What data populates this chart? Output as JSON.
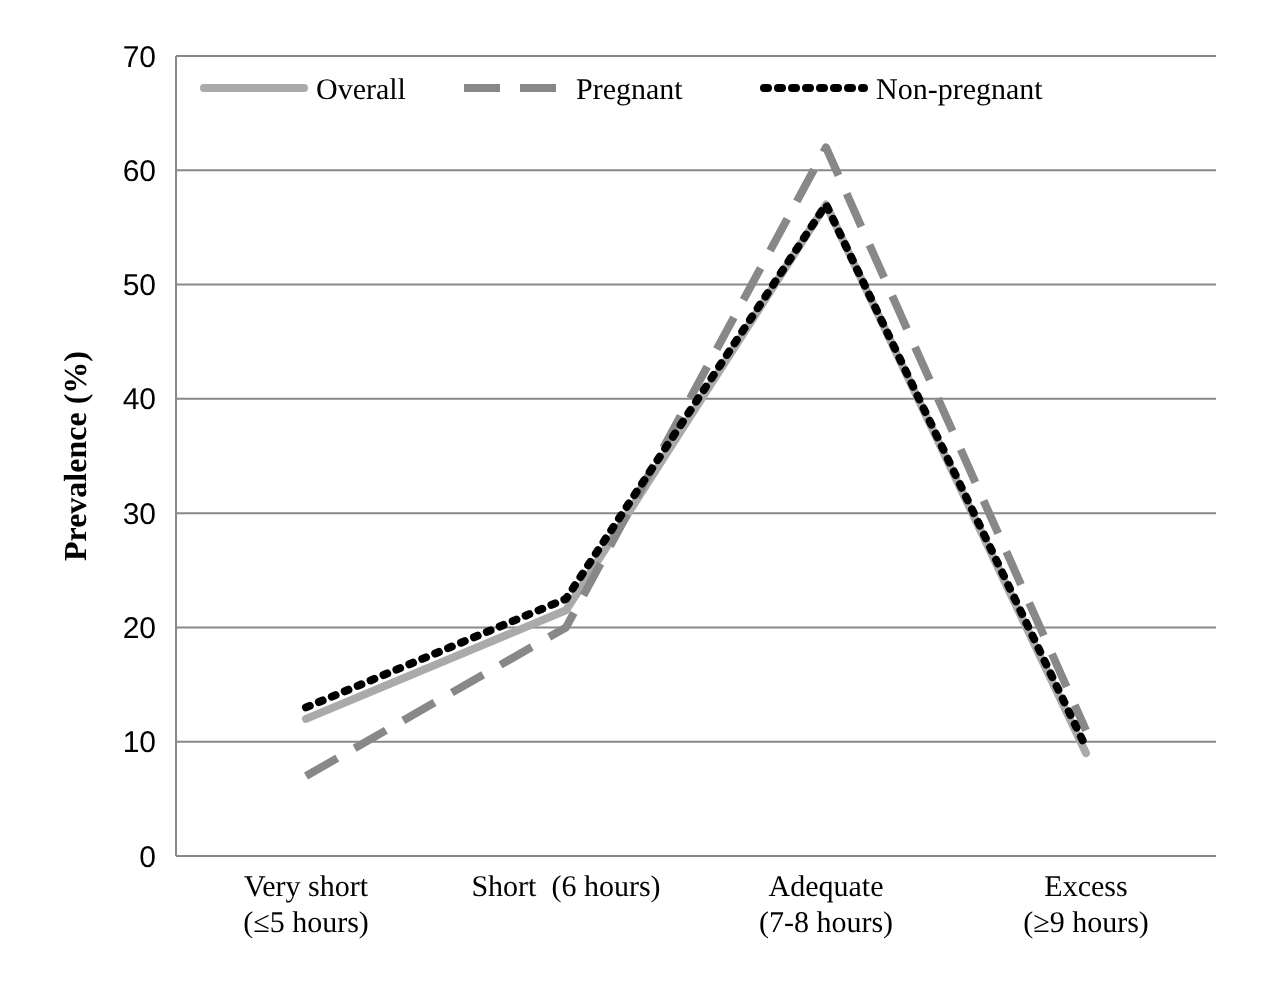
{
  "chart_data": {
    "type": "line",
    "ylabel": "Prevalence (%)",
    "categories": [
      "Very short\n(≤5 hours)",
      "Short  (6 hours)",
      "Adequate\n(7-8 hours)",
      "Excess\n(≥9 hours)"
    ],
    "series": [
      {
        "name": "Overall",
        "color": "#aaaaaa",
        "line_style": "solid",
        "values": [
          12,
          21.5,
          57,
          9
        ]
      },
      {
        "name": "Pregnant",
        "color": "#888888",
        "line_style": "dashed",
        "values": [
          7,
          20,
          62,
          11
        ]
      },
      {
        "name": "Non-pregnant",
        "color": "#000000",
        "line_style": "dotted",
        "values": [
          13,
          22.5,
          57,
          9.5
        ]
      }
    ],
    "ylim": [
      0,
      70
    ],
    "yticks": [
      0,
      10,
      20,
      30,
      40,
      50,
      60,
      70
    ],
    "grid": "y",
    "legend": "top",
    "marker": "none"
  }
}
